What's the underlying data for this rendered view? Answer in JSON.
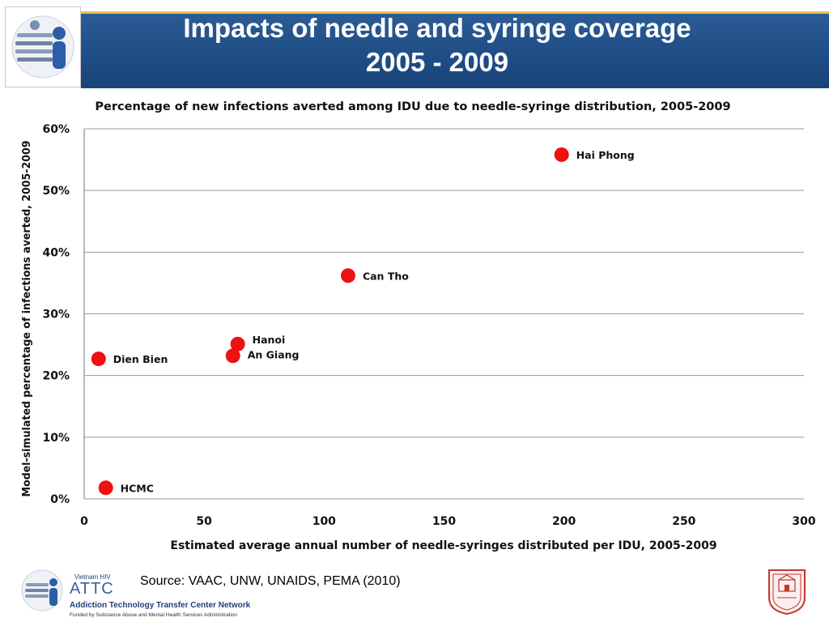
{
  "slide": {
    "title_line1": "Impacts of needle and syringe coverage",
    "title_line2": "2005 - 2009",
    "source": "Source: VAAC, UNW, UNAIDS, PEMA (2010)"
  },
  "footer": {
    "attc_small": "Vietnam HIV",
    "attc_big": "ATTC",
    "attc_network": "Addiction Technology Transfer Center Network",
    "attc_funded": "Funded by Substance Abuse and Mental Health Services Administration"
  },
  "colors": {
    "banner": "#1e4c85",
    "banner_border": "#e8c04a",
    "point": "#ee1111",
    "grid": "#9a9a9a"
  },
  "chart_data": {
    "type": "scatter",
    "title": "Percentage of new infections averted among IDU due to needle-syringe distribution, 2005-2009",
    "xlabel": "Estimated average annual number of needle-syringes distributed per IDU, 2005-2009",
    "ylabel": "Model-simulated percentage of infections averted, 2005-2009",
    "xlim": [
      0,
      300
    ],
    "ylim": [
      0,
      60
    ],
    "xticks": [
      0,
      50,
      100,
      150,
      200,
      250,
      300
    ],
    "yticks": [
      0,
      10,
      20,
      30,
      40,
      50,
      60
    ],
    "ytick_labels": [
      "0%",
      "10%",
      "20%",
      "30%",
      "40%",
      "50%",
      "60%"
    ],
    "grid": "horizontal",
    "points": [
      {
        "label": "Hai Phong",
        "x": 199,
        "y": 55.8
      },
      {
        "label": "Can Tho",
        "x": 110,
        "y": 36.2
      },
      {
        "label": "Hanoi",
        "x": 64,
        "y": 25.1
      },
      {
        "label": "An Giang",
        "x": 62,
        "y": 23.2
      },
      {
        "label": "Dien Bien",
        "x": 6,
        "y": 22.7
      },
      {
        "label": "HCMC",
        "x": 9,
        "y": 1.8
      }
    ]
  }
}
